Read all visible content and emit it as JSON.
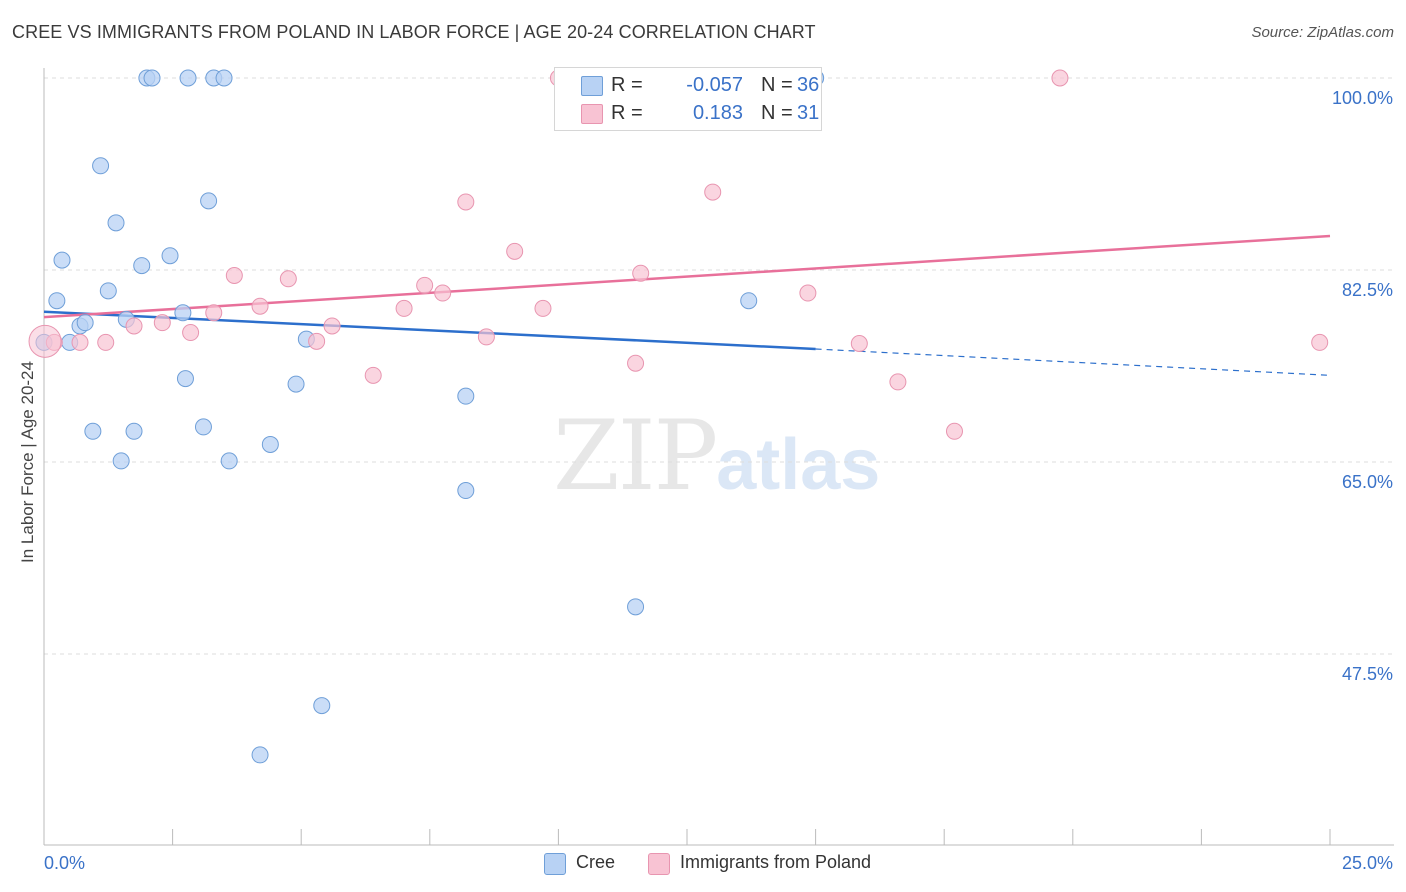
{
  "title": "CREE VS IMMIGRANTS FROM POLAND IN LABOR FORCE | AGE 20-24 CORRELATION CHART",
  "source": "Source: ZipAtlas.com",
  "watermark": {
    "zip": "ZIP",
    "atlas": "atlas"
  },
  "colors": {
    "blue_fill": "#b8d2f4",
    "blue_stroke": "#6f9fd8",
    "blue_line": "#2c6fcc",
    "pink_fill": "#f8c3d3",
    "pink_stroke": "#e895b0",
    "pink_line": "#e8709a",
    "tick_label": "#3a72c8",
    "grid": "#dcdcdc"
  },
  "legend": {
    "rows": [
      {
        "r_label": "R =",
        "r_value": "-0.057",
        "n_label": "N =",
        "n_value": "36",
        "color": "#b8d2f4",
        "border": "#6f9fd8"
      },
      {
        "r_label": "R =",
        "r_value": "0.183",
        "n_label": "N =",
        "n_value": "31",
        "color": "#f8c3d3",
        "border": "#e895b0"
      }
    ]
  },
  "bottom_legend": [
    {
      "label": "Cree",
      "color": "#b8d2f4",
      "border": "#6f9fd8"
    },
    {
      "label": "Immigrants from Poland",
      "color": "#f8c3d3",
      "border": "#e895b0"
    }
  ],
  "chart_data": {
    "type": "scatter",
    "title": "CREE VS IMMIGRANTS FROM POLAND IN LABOR FORCE | AGE 20-24 CORRELATION CHART",
    "xlabel": "",
    "ylabel": "In Labor Force | Age 20-24",
    "xlim": [
      0,
      25
    ],
    "ylim": [
      33,
      102
    ],
    "x_tick_labels": [
      "0.0%",
      "25.0%"
    ],
    "y_ticks": [
      47.5,
      65.0,
      82.5,
      100.0
    ],
    "y_tick_labels": [
      "47.5%",
      "65.0%",
      "82.5%",
      "100.0%"
    ],
    "grid": true,
    "series": [
      {
        "name": "Cree",
        "color": "#b8d2f4",
        "points": [
          [
            0.0,
            75.9
          ],
          [
            0.25,
            79.7
          ],
          [
            0.35,
            83.4
          ],
          [
            0.5,
            75.9
          ],
          [
            0.7,
            77.4
          ],
          [
            0.8,
            77.7
          ],
          [
            0.95,
            67.8
          ],
          [
            1.1,
            92.0
          ],
          [
            1.25,
            80.6
          ],
          [
            1.4,
            86.8
          ],
          [
            1.5,
            65.1
          ],
          [
            1.6,
            78.0
          ],
          [
            1.75,
            67.8
          ],
          [
            1.9,
            82.9
          ],
          [
            2.0,
            100.0
          ],
          [
            2.1,
            100.0
          ],
          [
            2.45,
            83.8
          ],
          [
            2.7,
            78.6
          ],
          [
            2.75,
            72.6
          ],
          [
            2.8,
            100.0
          ],
          [
            3.1,
            68.2
          ],
          [
            3.2,
            88.8
          ],
          [
            3.3,
            100.0
          ],
          [
            3.5,
            100.0
          ],
          [
            3.6,
            65.1
          ],
          [
            4.2,
            38.3
          ],
          [
            4.4,
            66.6
          ],
          [
            4.9,
            72.1
          ],
          [
            5.1,
            76.2
          ],
          [
            5.4,
            42.8
          ],
          [
            8.2,
            71.0
          ],
          [
            8.2,
            62.4
          ],
          [
            11.5,
            51.8
          ],
          [
            13.7,
            79.7
          ],
          [
            15.0,
            100.0
          ],
          [
            15.0,
            100.0
          ]
        ]
      },
      {
        "name": "Immigrants from Poland",
        "color": "#f8c3d3",
        "points": [
          [
            0.2,
            75.9
          ],
          [
            0.7,
            75.9
          ],
          [
            1.2,
            75.9
          ],
          [
            1.75,
            77.4
          ],
          [
            2.3,
            77.7
          ],
          [
            2.85,
            76.8
          ],
          [
            3.3,
            78.6
          ],
          [
            3.7,
            82.0
          ],
          [
            4.2,
            79.2
          ],
          [
            4.75,
            81.7
          ],
          [
            5.3,
            76.0
          ],
          [
            5.6,
            77.4
          ],
          [
            6.4,
            72.9
          ],
          [
            7.0,
            79.0
          ],
          [
            7.4,
            81.1
          ],
          [
            7.75,
            80.4
          ],
          [
            8.2,
            88.7
          ],
          [
            8.6,
            76.4
          ],
          [
            9.15,
            84.2
          ],
          [
            9.7,
            79.0
          ],
          [
            10.0,
            100.0
          ],
          [
            11.5,
            74.0
          ],
          [
            11.6,
            82.2
          ],
          [
            13.0,
            89.6
          ],
          [
            14.85,
            80.4
          ],
          [
            15.85,
            75.8
          ],
          [
            16.6,
            72.3
          ],
          [
            17.7,
            67.8
          ],
          [
            19.75,
            100.0
          ],
          [
            24.8,
            75.9
          ],
          [
            0.02,
            76.0
          ]
        ]
      }
    ],
    "trendlines": [
      {
        "series": "Cree",
        "x_start": 0.0,
        "y_start": 78.7,
        "x_end": 15.0,
        "y_end": 75.3,
        "dashed_to_x": 25.0,
        "dashed_to_y": 72.9
      },
      {
        "series": "Immigrants from Poland",
        "x_start": 0.0,
        "y_start": 78.2,
        "x_end": 25.0,
        "y_end": 85.6
      }
    ]
  }
}
